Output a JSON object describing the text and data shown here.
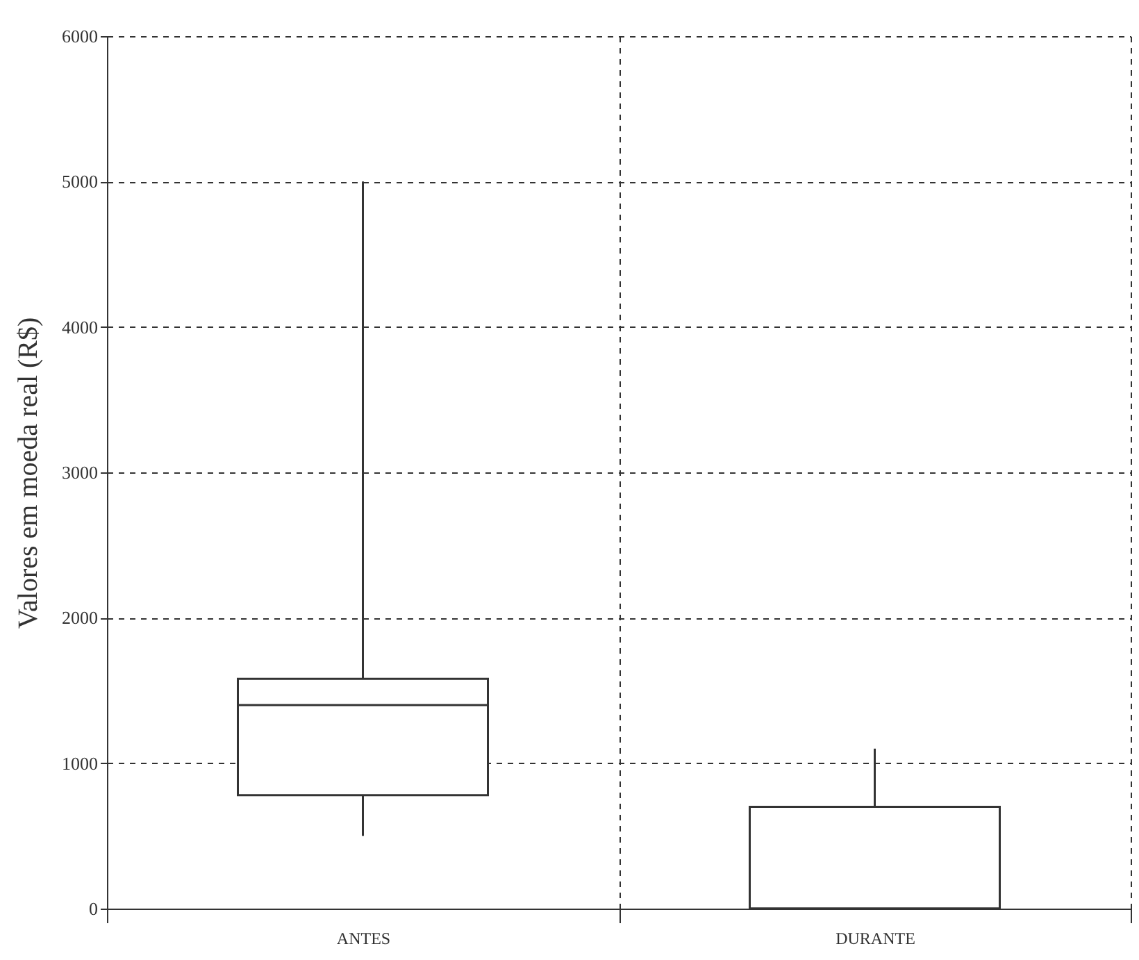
{
  "chart_data": {
    "type": "box",
    "ylabel": "Valores em moeda real (R$)",
    "categories": [
      "ANTES",
      "DURANTE"
    ],
    "boxes": [
      {
        "low": 500,
        "q1": 780,
        "median": 1400,
        "q3": 1580,
        "high": 5000
      },
      {
        "low": 0,
        "q1": 0,
        "median": 0,
        "q3": 700,
        "high": 1100
      }
    ],
    "ylim": [
      0,
      6000
    ],
    "yticks": [
      0,
      1000,
      2000,
      3000,
      4000,
      5000,
      6000
    ],
    "grid": true,
    "color": "#333333"
  }
}
